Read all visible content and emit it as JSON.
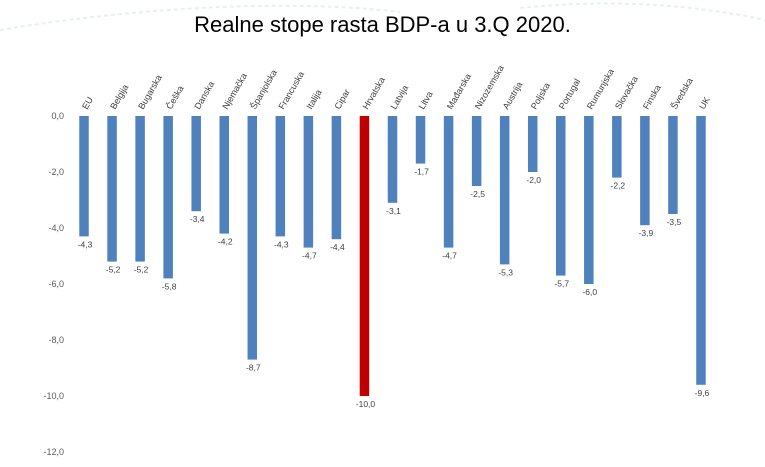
{
  "chart_data": {
    "type": "bar",
    "title": "Realne stope rasta BDP-a u 3.Q 2020.",
    "xlabel": "",
    "ylabel": "",
    "ylim": [
      -12,
      0
    ],
    "yticks": [
      "0,0",
      "-2,0",
      "-4,0",
      "-6,0",
      "-8,0",
      "-10,0",
      "-12,0"
    ],
    "ytick_values": [
      0,
      -2,
      -4,
      -6,
      -8,
      -10,
      -12
    ],
    "grid": false,
    "categories": [
      "EU",
      "Belgija",
      "Bugarska",
      "Češka",
      "Danska",
      "Njemačka",
      "Španjolska",
      "Francuska",
      "Italija",
      "Cipar",
      "Hrvatska",
      "Latvija",
      "Litva",
      "Mađarska",
      "Nizozemska",
      "Austrija",
      "Poljska",
      "Portugal",
      "Rumunjska",
      "Slovačka",
      "Finska",
      "Švedska",
      "UK"
    ],
    "values": [
      -4.3,
      -5.2,
      -5.2,
      -5.8,
      -3.4,
      -4.2,
      -8.7,
      -4.3,
      -4.7,
      -4.4,
      -10.0,
      -3.1,
      -1.7,
      -4.7,
      -2.5,
      -5.3,
      -2.0,
      -5.7,
      -6.0,
      -2.2,
      -3.9,
      -3.5,
      -9.6
    ],
    "data_labels": [
      "-4,3",
      "-5,2",
      "-5,2",
      "-5,8",
      "-3,4",
      "-4,2",
      "-8,7",
      "-4,3",
      "-4,7",
      "-4,4",
      "-10,0",
      "-3,1",
      "-1,7",
      "-4,7",
      "-2,5",
      "-5,3",
      "-2,0",
      "-5,7",
      "-6,0",
      "-2,2",
      "-3,9",
      "-3,5",
      "-9,6"
    ],
    "bar_color": "#4F81BD",
    "highlight_color": "#C00000",
    "highlight_category": "Hrvatska"
  }
}
